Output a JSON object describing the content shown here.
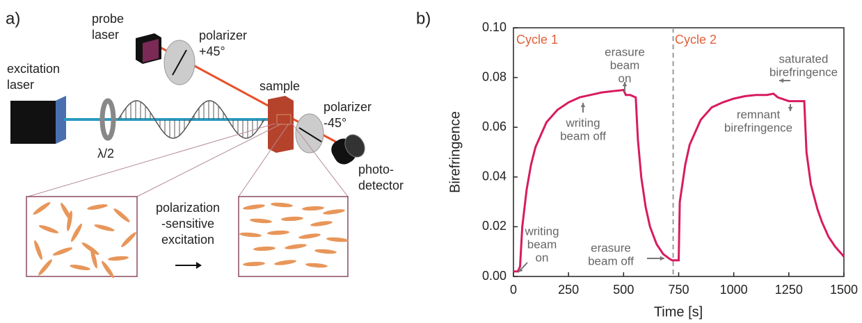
{
  "panel_a": {
    "label": "a)",
    "probe_laser": [
      "probe",
      "laser"
    ],
    "polarizer_in": [
      "polarizer",
      "+45°"
    ],
    "excitation_laser": [
      "excitation",
      "laser"
    ],
    "sample": "sample",
    "polarizer_out": [
      "polarizer",
      "-45°"
    ],
    "waveplate": "λ/2",
    "detector": [
      "photo-",
      "detector"
    ],
    "process": [
      "polarization",
      "-sensitive",
      "excitation"
    ]
  },
  "chart_data": {
    "type": "line",
    "panel_label": "b)",
    "x_label": "Time [s]",
    "y_label": "Birefringence",
    "x": [
      0,
      20,
      30,
      40,
      60,
      80,
      100,
      150,
      200,
      250,
      300,
      350,
      400,
      450,
      500,
      510,
      530,
      555,
      565,
      580,
      600,
      620,
      650,
      680,
      710,
      720,
      750,
      755,
      780,
      800,
      850,
      900,
      950,
      1000,
      1050,
      1100,
      1150,
      1180,
      1200,
      1250,
      1320,
      1330,
      1350,
      1380,
      1400,
      1430,
      1460,
      1500
    ],
    "series": [
      {
        "color": "#d81b60",
        "values": [
          0.002,
          0.002,
          0.004,
          0.02,
          0.035,
          0.045,
          0.052,
          0.062,
          0.067,
          0.07,
          0.072,
          0.073,
          0.074,
          0.0745,
          0.075,
          0.073,
          0.073,
          0.072,
          0.055,
          0.04,
          0.028,
          0.02,
          0.013,
          0.009,
          0.007,
          0.0065,
          0.0065,
          0.03,
          0.045,
          0.053,
          0.063,
          0.068,
          0.07,
          0.0715,
          0.0725,
          0.073,
          0.073,
          0.0735,
          0.072,
          0.0705,
          0.0705,
          0.05,
          0.037,
          0.027,
          0.022,
          0.016,
          0.012,
          0.008
        ]
      }
    ],
    "xlim": [
      0,
      1500
    ],
    "xticks": [
      0,
      250,
      500,
      750,
      1000,
      1250,
      1500
    ],
    "ylim": [
      0,
      0.1
    ],
    "yticks": [
      {
        "value": 0,
        "label": "0.00"
      },
      {
        "value": 0.02,
        "label": "0.02"
      },
      {
        "value": 0.04,
        "label": "0.04"
      },
      {
        "value": 0.06,
        "label": "0.06"
      },
      {
        "value": 0.08,
        "label": "0.08"
      },
      {
        "value": 0.1,
        "label": "0.10"
      }
    ],
    "reference_lines": [
      {
        "x": 725
      }
    ],
    "cycles": [
      "Cycle 1",
      "Cycle 2"
    ],
    "annotations": [
      [
        "erasure",
        "beam",
        "on"
      ],
      [
        "writing",
        "beam off"
      ],
      [
        "saturated",
        "birefringence"
      ],
      [
        "remnant",
        "birefringence"
      ],
      [
        "writing",
        "beam",
        "on"
      ],
      [
        "erasure",
        "beam off"
      ]
    ]
  }
}
